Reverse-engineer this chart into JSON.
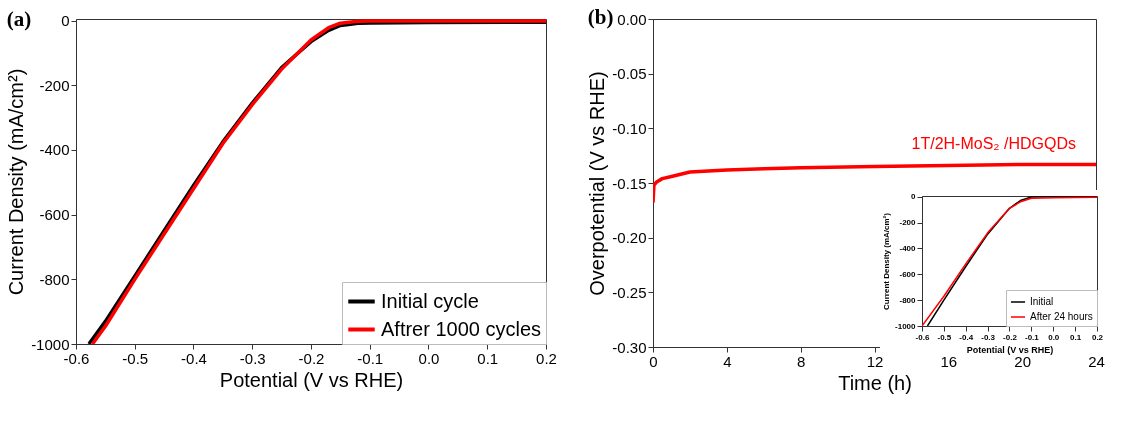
{
  "chart_data": [
    {
      "type": "line",
      "title": "(a)",
      "xlabel": "Potential (V vs RHE)",
      "ylabel": "Current Density (mA/cm²)",
      "xlim": [
        -0.6,
        0.2
      ],
      "xticks": [
        -0.6,
        -0.5,
        -0.4,
        -0.3,
        -0.2,
        -0.1,
        {
          "value": 0,
          "label": "0.0"
        },
        0.1,
        0.2
      ],
      "ylim": [
        -1000,
        5
      ],
      "yticks": [
        -1000,
        -800,
        -600,
        -400,
        -200,
        0
      ],
      "legend": "bottom right",
      "series": [
        {
          "name": "Initial cycle",
          "color": "#000000",
          "x": [
            -0.578,
            -0.55,
            -0.5,
            -0.45,
            -0.4,
            -0.35,
            -0.3,
            -0.25,
            -0.2,
            -0.17,
            -0.15,
            -0.12,
            -0.1,
            0,
            0.2
          ],
          "values": [
            -1000,
            -930,
            -790,
            -650,
            -510,
            -375,
            -255,
            -145,
            -65,
            -30,
            -15,
            -8,
            -7,
            -6,
            -5
          ]
        },
        {
          "name": "Aftrer 1000 cycles",
          "color": "#ff0000",
          "x": [
            -0.572,
            -0.55,
            -0.5,
            -0.45,
            -0.4,
            -0.35,
            -0.3,
            -0.25,
            -0.2,
            -0.17,
            -0.15,
            -0.12,
            -0.1,
            0,
            0.2
          ],
          "values": [
            -1000,
            -945,
            -800,
            -660,
            -520,
            -380,
            -260,
            -150,
            -60,
            -22,
            -8,
            -2,
            -1,
            -1,
            -1
          ]
        }
      ]
    },
    {
      "type": "line",
      "title": "(b)",
      "xlabel": "Time (h)",
      "ylabel": "Overpotential (V vs RHE)",
      "xlim": [
        0,
        24
      ],
      "xticks": [
        0,
        4,
        8,
        12,
        16,
        20,
        24
      ],
      "ylim": [
        -0.3,
        0
      ],
      "yticks": [
        {
          "value": -0.3,
          "label": "-0.30"
        },
        {
          "value": -0.25,
          "label": "-0.25"
        },
        {
          "value": -0.2,
          "label": "-0.20"
        },
        {
          "value": -0.15,
          "label": "-0.15"
        },
        {
          "value": -0.1,
          "label": "-0.10"
        },
        {
          "value": -0.05,
          "label": "-0.05"
        },
        {
          "value": 0,
          "label": "0.00"
        }
      ],
      "series": [
        {
          "name": "1T/2H-MoS₂ /HDGQDs",
          "color": "#ff0000",
          "x": [
            0,
            0.05,
            0.2,
            0.5,
            1,
            2,
            3,
            4,
            6,
            8,
            12,
            16,
            20,
            24
          ],
          "values": [
            -0.168,
            -0.152,
            -0.149,
            -0.146,
            -0.144,
            -0.14,
            -0.139,
            -0.138,
            -0.137,
            -0.136,
            -0.135,
            -0.134,
            -0.133,
            -0.133
          ]
        }
      ]
    },
    {
      "type": "line",
      "xlabel": "Potential (V vs RHE)",
      "ylabel": "Current Density (mA/cm²)",
      "xlim": [
        -0.6,
        0.2
      ],
      "xticks": [
        -0.6,
        -0.5,
        -0.4,
        -0.3,
        -0.2,
        -0.1,
        {
          "value": 0,
          "label": "0.0"
        },
        0.1,
        0.2
      ],
      "ylim": [
        -1000,
        5
      ],
      "yticks": [
        -1000,
        -800,
        -600,
        -400,
        -200,
        0
      ],
      "legend": "bottom right",
      "series": [
        {
          "name": "Initial",
          "color": "#000000",
          "x": [
            -0.575,
            -0.5,
            -0.4,
            -0.3,
            -0.2,
            -0.15,
            -0.1,
            0,
            0.2
          ],
          "values": [
            -1000,
            -800,
            -540,
            -290,
            -90,
            -30,
            -3,
            0,
            0
          ]
        },
        {
          "name": "After 24 hours",
          "color": "#ff0000",
          "x": [
            -0.6,
            -0.5,
            -0.4,
            -0.3,
            -0.2,
            -0.15,
            -0.1,
            0,
            0.2
          ],
          "values": [
            -1000,
            -770,
            -520,
            -280,
            -90,
            -40,
            -12,
            -8,
            -5
          ]
        }
      ]
    }
  ]
}
